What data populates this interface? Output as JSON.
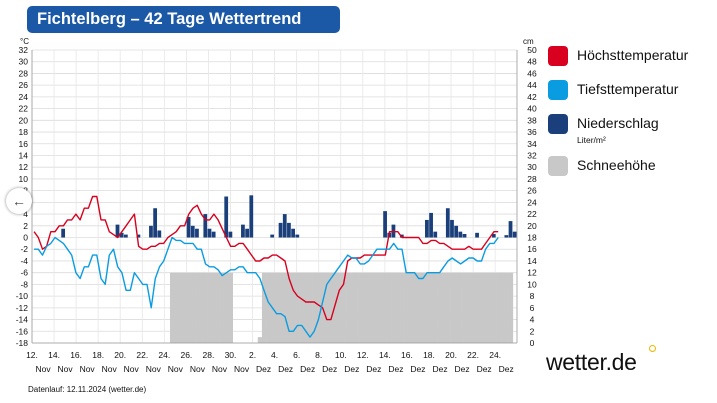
{
  "header": {
    "title": "Fichtelberg – 42 Tage Wettertrend"
  },
  "legend": {
    "items": [
      {
        "label": "Höchsttemperatur",
        "color": "#d8001e"
      },
      {
        "label": "Tiefsttemperatur",
        "color": "#0a9ce0"
      },
      {
        "label": "Niederschlag",
        "sub": "Liter/m²",
        "color": "#1a3f7a"
      },
      {
        "label": "Schneehöhe",
        "color": "#c8c8c8"
      }
    ]
  },
  "footer": {
    "text": "Datenlauf: 12.11.2024 (wetter.de)"
  },
  "logo": {
    "text": "wetter.de",
    "dot_color": "#e6b800"
  },
  "nav": {
    "back_icon": "arrow-left-icon",
    "symbol": "←"
  },
  "chart_data": {
    "type": "bar+line",
    "y_left": {
      "unit": "°C",
      "min": -18,
      "max": 32,
      "ticks": [
        -18,
        -16,
        -14,
        -12,
        -10,
        -8,
        -6,
        -4,
        -2,
        0,
        2,
        4,
        6,
        8,
        10,
        12,
        14,
        16,
        18,
        20,
        22,
        24,
        26,
        28,
        30,
        32
      ]
    },
    "y_right": {
      "unit": "cm",
      "min": 0,
      "max": 50,
      "ticks": [
        0,
        2,
        4,
        6,
        8,
        10,
        12,
        14,
        16,
        18,
        20,
        22,
        24,
        26,
        28,
        30,
        32,
        34,
        36,
        38,
        40,
        42,
        44,
        46,
        48,
        50
      ]
    },
    "x_labels": [
      {
        "day": "12.",
        "mon": "Nov"
      },
      {
        "day": "14.",
        "mon": "Nov"
      },
      {
        "day": "16.",
        "mon": "Nov"
      },
      {
        "day": "18.",
        "mon": "Nov"
      },
      {
        "day": "20.",
        "mon": "Nov"
      },
      {
        "day": "22.",
        "mon": "Nov"
      },
      {
        "day": "24.",
        "mon": "Nov"
      },
      {
        "day": "26.",
        "mon": "Nov"
      },
      {
        "day": "28.",
        "mon": "Nov"
      },
      {
        "day": "30.",
        "mon": "Nov"
      },
      {
        "day": "2.",
        "mon": "Dez"
      },
      {
        "day": "4.",
        "mon": "Dez"
      },
      {
        "day": "6.",
        "mon": "Dez"
      },
      {
        "day": "8.",
        "mon": "Dez"
      },
      {
        "day": "10.",
        "mon": "Dez"
      },
      {
        "day": "12.",
        "mon": "Dez"
      },
      {
        "day": "14.",
        "mon": "Dez"
      },
      {
        "day": "16.",
        "mon": "Dez"
      },
      {
        "day": "18.",
        "mon": "Dez"
      },
      {
        "day": "20.",
        "mon": "Dez"
      },
      {
        "day": "22.",
        "mon": "Dez"
      },
      {
        "day": "24.",
        "mon": "Dez"
      }
    ],
    "series": [
      {
        "name": "Höchsttemperatur",
        "type": "line",
        "color": "#d8001e",
        "values": [
          1,
          0,
          -2,
          -1.5,
          1,
          1,
          2,
          2,
          3,
          3,
          4,
          3,
          5,
          5,
          7,
          7,
          3,
          3,
          1,
          0.5,
          0,
          1,
          2,
          3,
          4,
          -1.5,
          -2,
          -2,
          -1.5,
          -1.5,
          -1,
          -1,
          0,
          0.5,
          1,
          2,
          2,
          4,
          5,
          5.5,
          4,
          3,
          3,
          4,
          3,
          1.5,
          0,
          -1.5,
          -1.5,
          -1,
          -1,
          -2,
          -3,
          -4,
          -4,
          -3.5,
          -3.5,
          -3,
          -3,
          -3.5,
          -4,
          -7,
          -9,
          -10,
          -10.5,
          -11,
          -11,
          -11,
          -11.5,
          -12,
          -14,
          -14,
          -11.5,
          -9,
          -8,
          -4,
          -3.5,
          -3.5,
          -3.5,
          -3,
          -3,
          -3,
          -3,
          -3,
          -3,
          1,
          1,
          1,
          0,
          0,
          0,
          0,
          0,
          -1,
          -1,
          -0.5,
          -0.5,
          -1,
          -1,
          -1.5,
          -2,
          -2,
          -2,
          -2,
          -1.5,
          -2,
          -2,
          -2,
          -1,
          0,
          1,
          1
        ]
      },
      {
        "name": "Tiefsttemperatur",
        "type": "line",
        "color": "#0a9ce0",
        "values": [
          -2,
          -2,
          -3,
          -1.5,
          -1,
          0,
          -0.5,
          -1,
          -2,
          -3,
          -6,
          -7,
          -5,
          -5,
          -3,
          -3,
          -7,
          -8,
          -3,
          -2,
          -5,
          -6,
          -9,
          -9,
          -6,
          -7,
          -8,
          -8,
          -12,
          -7,
          -5,
          -4,
          -2,
          0,
          -0.5,
          -0.5,
          -1,
          -1,
          -1,
          -2,
          -2,
          -4.5,
          -5,
          -5,
          -5.5,
          -6.5,
          -6,
          -5.5,
          -5.5,
          -5,
          -5,
          -6,
          -6,
          -6,
          -7,
          -9,
          -11,
          -12,
          -13,
          -13,
          -13.5,
          -16,
          -16,
          -15,
          -15,
          -16,
          -17,
          -16,
          -14,
          -11,
          -8,
          -7,
          -6,
          -5,
          -4,
          -3,
          -3.5,
          -3.5,
          -4.5,
          -4.5,
          -4,
          -3,
          -2,
          -2,
          -2,
          -2,
          -1,
          -2,
          -2,
          -6,
          -6,
          -6,
          -7,
          -7,
          -6,
          -6,
          -6,
          -6,
          -5,
          -4,
          -3.5,
          -4,
          -4.5,
          -4,
          -3.5,
          -3.5,
          -4,
          -4,
          -2,
          -1,
          -1,
          0
        ]
      },
      {
        "name": "Niederschlag",
        "type": "bar",
        "color": "#1a3f7a",
        "values": [
          {
            "x": 7,
            "y": 1.5
          },
          {
            "x": 20,
            "y": 2.2
          },
          {
            "x": 21,
            "y": 0.8
          },
          {
            "x": 22,
            "y": 0.5
          },
          {
            "x": 25,
            "y": 0.5
          },
          {
            "x": 28,
            "y": 2
          },
          {
            "x": 29,
            "y": 5
          },
          {
            "x": 30,
            "y": 1.2
          },
          {
            "x": 37,
            "y": 3.5
          },
          {
            "x": 38,
            "y": 2
          },
          {
            "x": 39,
            "y": 1.5
          },
          {
            "x": 41,
            "y": 4
          },
          {
            "x": 42,
            "y": 1.5
          },
          {
            "x": 43,
            "y": 1
          },
          {
            "x": 46,
            "y": 7
          },
          {
            "x": 47,
            "y": 1
          },
          {
            "x": 50,
            "y": 2.2
          },
          {
            "x": 51,
            "y": 1.5
          },
          {
            "x": 52,
            "y": 7.2
          },
          {
            "x": 57,
            "y": 0.5
          },
          {
            "x": 59,
            "y": 2.5
          },
          {
            "x": 60,
            "y": 4
          },
          {
            "x": 61,
            "y": 2.5
          },
          {
            "x": 62,
            "y": 1.5
          },
          {
            "x": 63,
            "y": 0.5
          },
          {
            "x": 84,
            "y": 4.5
          },
          {
            "x": 85,
            "y": 0.8
          },
          {
            "x": 86,
            "y": 2.2
          },
          {
            "x": 88,
            "y": 0.5
          },
          {
            "x": 94,
            "y": 3
          },
          {
            "x": 95,
            "y": 4.2
          },
          {
            "x": 96,
            "y": 1
          },
          {
            "x": 99,
            "y": 5
          },
          {
            "x": 100,
            "y": 3
          },
          {
            "x": 101,
            "y": 2
          },
          {
            "x": 102,
            "y": 1
          },
          {
            "x": 103,
            "y": 0.6
          },
          {
            "x": 106,
            "y": 0.8
          },
          {
            "x": 110,
            "y": 0.6
          },
          {
            "x": 113,
            "y": 0.4
          },
          {
            "x": 114,
            "y": 2.8
          },
          {
            "x": 115,
            "y": 1
          }
        ]
      },
      {
        "name": "Schneehöhe",
        "type": "area",
        "color": "#c8c8c8",
        "values": [
          0,
          0,
          0,
          0,
          0,
          0,
          0,
          0,
          0,
          0,
          0,
          0,
          0,
          0,
          0,
          0,
          0,
          0,
          0,
          0,
          0,
          0,
          0,
          0,
          0,
          0,
          0,
          0,
          0,
          0,
          0,
          0,
          0,
          12,
          12,
          12,
          12,
          12,
          12,
          12,
          12,
          12,
          12,
          12,
          12,
          12,
          12,
          12,
          0,
          0,
          0,
          0,
          0,
          0,
          1,
          12,
          12,
          12,
          12,
          12,
          12,
          12,
          12,
          12,
          12,
          12,
          12,
          12,
          12,
          12,
          12,
          12,
          12,
          12,
          12,
          12,
          12,
          12,
          12,
          12,
          12,
          12,
          12,
          12,
          12,
          12,
          12,
          12,
          12,
          12,
          12,
          12,
          12,
          12,
          12,
          12,
          12,
          12,
          12,
          12,
          12,
          12,
          12,
          12,
          12,
          12,
          12,
          12,
          12,
          12,
          12,
          12,
          12,
          12,
          12
        ]
      }
    ],
    "grid": true,
    "legend_position": "right"
  }
}
